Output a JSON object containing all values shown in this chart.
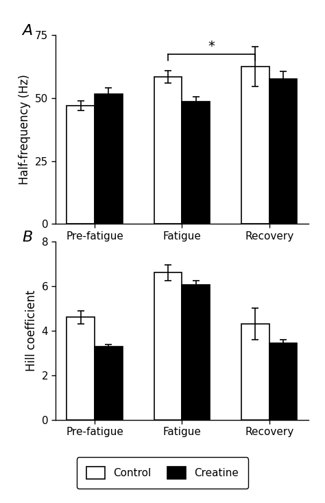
{
  "panel_A": {
    "title": "A",
    "ylabel": "Half-frequency (Hz)",
    "categories": [
      "Pre-fatigue",
      "Fatigue",
      "Recovery"
    ],
    "control_values": [
      47.0,
      58.5,
      62.5
    ],
    "creatine_values": [
      51.5,
      48.5,
      57.5
    ],
    "control_errors": [
      2.0,
      2.5,
      8.0
    ],
    "creatine_errors": [
      2.5,
      2.0,
      3.0
    ],
    "ylim": [
      0,
      75
    ],
    "yticks": [
      0,
      25,
      50,
      75
    ]
  },
  "panel_B": {
    "title": "B",
    "ylabel": "Hill coefficient",
    "categories": [
      "Pre-fatigue",
      "Fatigue",
      "Recovery"
    ],
    "control_values": [
      4.6,
      6.6,
      4.3
    ],
    "creatine_values": [
      3.3,
      6.05,
      3.45
    ],
    "control_errors": [
      0.3,
      0.35,
      0.7
    ],
    "creatine_errors": [
      0.07,
      0.2,
      0.15
    ],
    "ylim": [
      0,
      8
    ],
    "yticks": [
      0,
      2,
      4,
      6,
      8
    ]
  },
  "bar_width": 0.32,
  "control_color": "#ffffff",
  "creatine_color": "#000000",
  "bar_edgecolor": "#000000",
  "legend_labels": [
    "Control",
    "Creatine"
  ],
  "figure_width": 4.74,
  "figure_height": 7.33,
  "tick_fontsize": 11,
  "label_fontsize": 12,
  "panel_label_fontsize": 16
}
